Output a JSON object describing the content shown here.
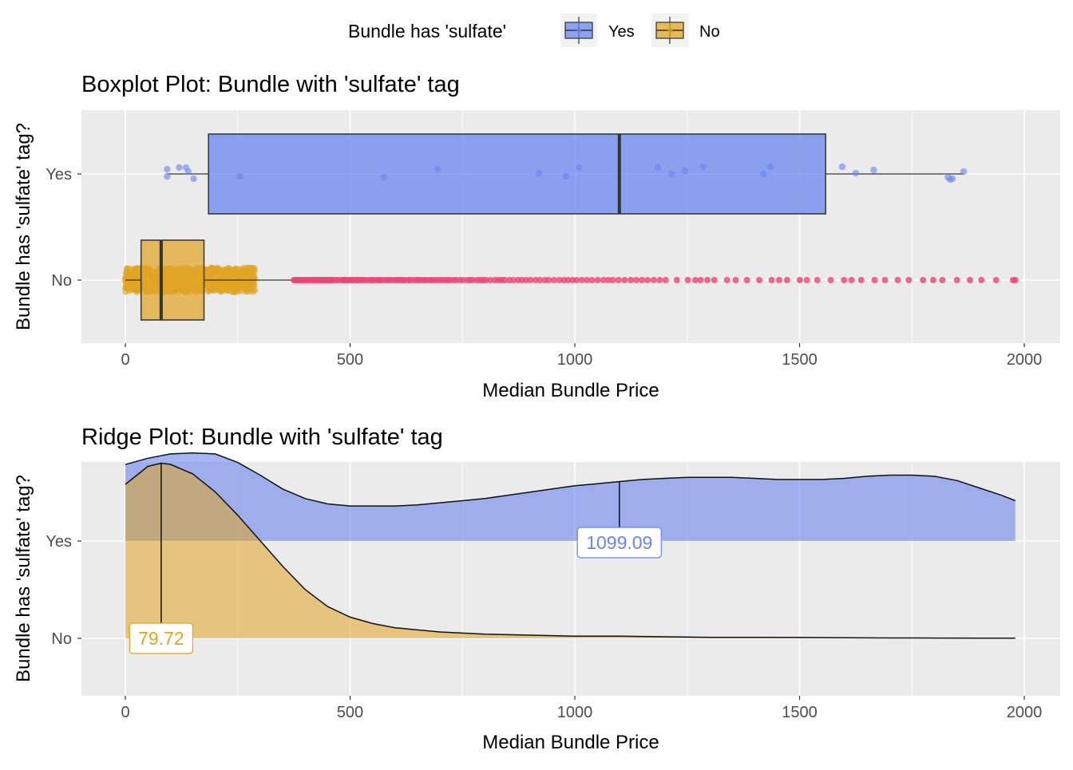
{
  "legend": {
    "title": "Bundle has 'sulfate'",
    "items": [
      {
        "label": "Yes",
        "color": "#6a86ee"
      },
      {
        "label": "No",
        "color": "#e0a424"
      }
    ]
  },
  "colors": {
    "yes": "#6a86ee",
    "no": "#e0a424",
    "outlier": "#ef4470",
    "panel": "#ebebeb",
    "grid": "#ffffff"
  },
  "chart_data": [
    {
      "type": "boxplot",
      "title": "Boxplot Plot: Bundle with 'sulfate' tag",
      "xlabel": "Median Bundle Price",
      "ylabel": "Bundle has 'sulfate' tag?",
      "xlim": [
        -100,
        2080
      ],
      "x_ticks": [
        0,
        500,
        1000,
        1500,
        2000
      ],
      "categories": [
        "Yes",
        "No"
      ],
      "grid": true,
      "series": [
        {
          "name": "Yes",
          "min": 93,
          "q1": 185,
          "median": 1099.09,
          "q3": 1558,
          "max": 1865,
          "points": [
            [
              93,
              0.06
            ],
            [
              93,
              -0.03
            ],
            [
              120,
              0.08
            ],
            [
              135,
              0.08
            ],
            [
              140,
              0.03
            ],
            [
              152,
              -0.06
            ],
            [
              255,
              -0.03
            ],
            [
              575,
              -0.04
            ],
            [
              695,
              0.06
            ],
            [
              920,
              0.01
            ],
            [
              980,
              -0.03
            ],
            [
              1010,
              0.08
            ],
            [
              1185,
              0.08
            ],
            [
              1215,
              0.0
            ],
            [
              1245,
              0.04
            ],
            [
              1285,
              0.09
            ],
            [
              1420,
              0.0
            ],
            [
              1435,
              0.09
            ],
            [
              1595,
              0.09
            ],
            [
              1625,
              0.01
            ],
            [
              1665,
              0.05
            ],
            [
              1830,
              -0.04
            ],
            [
              1835,
              -0.07
            ],
            [
              1840,
              -0.06
            ],
            [
              1865,
              0.03
            ]
          ]
        },
        {
          "name": "No",
          "min": 0,
          "q1": 35,
          "median": 79.72,
          "q3": 175,
          "max": 375,
          "jitter_range": [
            0,
            290
          ],
          "outlier_range": [
            375,
            1980
          ]
        }
      ]
    },
    {
      "type": "ridge",
      "title": "Ridge Plot: Bundle with 'sulfate' tag",
      "xlabel": "Median Bundle Price",
      "ylabel": "Bundle has 'sulfate' tag?",
      "xlim": [
        -100,
        2080
      ],
      "x_ticks": [
        0,
        500,
        1000,
        1500,
        2000
      ],
      "categories": [
        "Yes",
        "No"
      ],
      "grid": true,
      "series": [
        {
          "name": "Yes",
          "median": 1099.09,
          "median_label": "1099.09",
          "x": [
            0,
            50,
            100,
            150,
            200,
            250,
            300,
            350,
            400,
            450,
            500,
            550,
            600,
            650,
            700,
            750,
            800,
            850,
            900,
            950,
            1000,
            1050,
            1100,
            1150,
            1200,
            1250,
            1300,
            1350,
            1400,
            1450,
            1500,
            1550,
            1600,
            1650,
            1700,
            1750,
            1800,
            1850,
            1900,
            1950,
            1980
          ],
          "density": [
            0.72,
            0.78,
            0.82,
            0.83,
            0.82,
            0.74,
            0.62,
            0.49,
            0.4,
            0.35,
            0.33,
            0.33,
            0.33,
            0.34,
            0.36,
            0.38,
            0.4,
            0.43,
            0.46,
            0.49,
            0.52,
            0.54,
            0.56,
            0.58,
            0.59,
            0.6,
            0.6,
            0.6,
            0.59,
            0.58,
            0.58,
            0.58,
            0.59,
            0.61,
            0.62,
            0.62,
            0.61,
            0.57,
            0.5,
            0.43,
            0.38
          ]
        },
        {
          "name": "No",
          "median": 79.72,
          "median_label": "79.72",
          "x": [
            0,
            50,
            80,
            100,
            150,
            200,
            250,
            300,
            350,
            400,
            450,
            500,
            550,
            600,
            700,
            800,
            900,
            1000,
            1100,
            1200,
            1300,
            1400,
            1500,
            1600,
            1700,
            1800,
            1900,
            1980
          ],
          "density": [
            1.45,
            1.62,
            1.65,
            1.64,
            1.55,
            1.38,
            1.16,
            0.92,
            0.68,
            0.46,
            0.3,
            0.2,
            0.14,
            0.1,
            0.06,
            0.04,
            0.03,
            0.02,
            0.02,
            0.015,
            0.01,
            0.01,
            0.008,
            0.005,
            0.004,
            0.003,
            0.002,
            0.002
          ]
        }
      ]
    }
  ]
}
